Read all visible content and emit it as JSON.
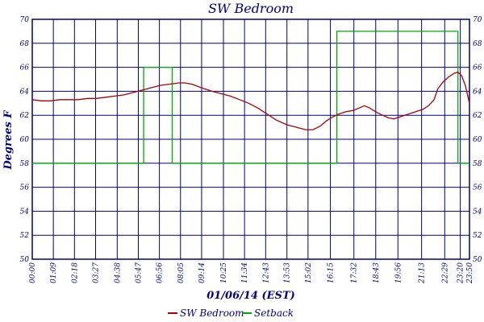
{
  "chart_data": {
    "type": "line",
    "title": "SW Bedroom",
    "xlabel": "01/06/14 (EST)",
    "ylabel": "Degrees F",
    "ylim": [
      50,
      70
    ],
    "yticks": [
      50,
      52,
      54,
      56,
      58,
      60,
      62,
      64,
      66,
      68,
      70
    ],
    "x_unit": "time of day (hours)",
    "xlim": [
      0,
      23.83
    ],
    "xticks": [
      {
        "label": "00:00",
        "t": 0.0
      },
      {
        "label": "01:09",
        "t": 1.15
      },
      {
        "label": "02:18",
        "t": 2.3
      },
      {
        "label": "03:27",
        "t": 3.45
      },
      {
        "label": "04:38",
        "t": 4.63
      },
      {
        "label": "05:47",
        "t": 5.78
      },
      {
        "label": "06:56",
        "t": 6.93
      },
      {
        "label": "08:05",
        "t": 8.08
      },
      {
        "label": "09:14",
        "t": 9.23
      },
      {
        "label": "10:25",
        "t": 10.42
      },
      {
        "label": "11:34",
        "t": 11.57
      },
      {
        "label": "12:43",
        "t": 12.72
      },
      {
        "label": "13:53",
        "t": 13.88
      },
      {
        "label": "15:02",
        "t": 15.03
      },
      {
        "label": "16:15",
        "t": 16.25
      },
      {
        "label": "17:32",
        "t": 17.53
      },
      {
        "label": "18:43",
        "t": 18.72
      },
      {
        "label": "19:56",
        "t": 19.93
      },
      {
        "label": "21:13",
        "t": 21.22
      },
      {
        "label": "22:29",
        "t": 22.48
      },
      {
        "label": "23:20",
        "t": 23.33
      },
      {
        "label": "23:50",
        "t": 23.83
      }
    ],
    "grid": true,
    "legend": "bottom",
    "series": [
      {
        "name": "SW Bedroom",
        "color": "#aa0000",
        "points": [
          [
            0.0,
            63.3
          ],
          [
            0.5,
            63.2
          ],
          [
            1.0,
            63.2
          ],
          [
            1.5,
            63.3
          ],
          [
            2.0,
            63.3
          ],
          [
            2.5,
            63.3
          ],
          [
            3.0,
            63.4
          ],
          [
            3.5,
            63.4
          ],
          [
            4.0,
            63.5
          ],
          [
            4.5,
            63.6
          ],
          [
            5.0,
            63.7
          ],
          [
            5.5,
            63.9
          ],
          [
            6.0,
            64.1
          ],
          [
            6.5,
            64.3
          ],
          [
            7.0,
            64.5
          ],
          [
            7.5,
            64.6
          ],
          [
            8.0,
            64.7
          ],
          [
            8.3,
            64.7
          ],
          [
            8.7,
            64.6
          ],
          [
            9.2,
            64.3
          ],
          [
            9.8,
            64.0
          ],
          [
            10.3,
            63.8
          ],
          [
            10.8,
            63.6
          ],
          [
            11.3,
            63.3
          ],
          [
            11.8,
            63.0
          ],
          [
            12.3,
            62.6
          ],
          [
            12.8,
            62.1
          ],
          [
            13.3,
            61.6
          ],
          [
            13.9,
            61.2
          ],
          [
            14.4,
            61.0
          ],
          [
            14.9,
            60.8
          ],
          [
            15.3,
            60.8
          ],
          [
            15.7,
            61.1
          ],
          [
            16.0,
            61.5
          ],
          [
            16.3,
            61.8
          ],
          [
            16.7,
            62.1
          ],
          [
            17.1,
            62.3
          ],
          [
            17.5,
            62.4
          ],
          [
            17.8,
            62.6
          ],
          [
            18.1,
            62.8
          ],
          [
            18.4,
            62.6
          ],
          [
            18.7,
            62.3
          ],
          [
            19.1,
            62.0
          ],
          [
            19.4,
            61.8
          ],
          [
            19.7,
            61.7
          ],
          [
            20.1,
            61.9
          ],
          [
            20.5,
            62.1
          ],
          [
            20.9,
            62.3
          ],
          [
            21.3,
            62.5
          ],
          [
            21.6,
            62.8
          ],
          [
            21.9,
            63.3
          ],
          [
            22.1,
            64.2
          ],
          [
            22.4,
            64.8
          ],
          [
            22.7,
            65.2
          ],
          [
            23.0,
            65.5
          ],
          [
            23.2,
            65.6
          ],
          [
            23.4,
            65.3
          ],
          [
            23.6,
            64.5
          ],
          [
            23.83,
            63.0
          ]
        ]
      },
      {
        "name": "Setback",
        "color": "#00aa00",
        "points": [
          [
            0.0,
            58
          ],
          [
            6.07,
            58
          ],
          [
            6.07,
            66
          ],
          [
            7.63,
            66
          ],
          [
            7.63,
            58
          ],
          [
            16.6,
            58
          ],
          [
            16.6,
            69
          ],
          [
            23.2,
            69
          ],
          [
            23.2,
            58
          ],
          [
            23.83,
            58
          ]
        ]
      }
    ]
  }
}
